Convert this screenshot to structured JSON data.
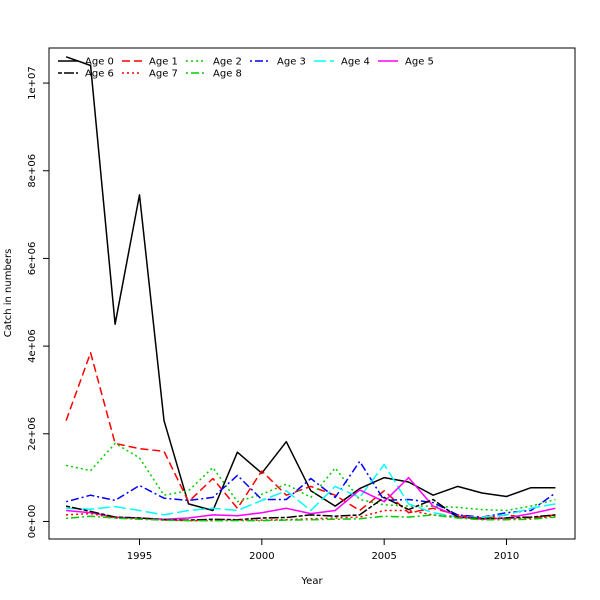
{
  "chart_data": {
    "type": "line",
    "title": "",
    "xlabel": "Year",
    "ylabel": "Catch in numbers",
    "xlim": [
      1991.3,
      2012.8
    ],
    "ylim": [
      -400000,
      10800000
    ],
    "x_ticks": [
      1995,
      2000,
      2005,
      2010
    ],
    "x_tick_labels": [
      "1995",
      "2000",
      "2005",
      "2010"
    ],
    "y_ticks": [
      0,
      2000000,
      4000000,
      6000000,
      8000000,
      10000000
    ],
    "y_tick_labels": [
      "0e+00",
      "2e+06",
      "4e+06",
      "6e+06",
      "8e+06",
      "1e+07"
    ],
    "grid": false,
    "legend": {
      "placement": "top-left",
      "columns": 6
    },
    "x": [
      1992,
      1993,
      1994,
      1995,
      1996,
      1997,
      1998,
      1999,
      2000,
      2001,
      2002,
      2003,
      2004,
      2005,
      2006,
      2007,
      2008,
      2009,
      2010,
      2011,
      2012
    ],
    "series": [
      {
        "name": "Age 0",
        "color": "#000000",
        "dash": "solid",
        "values": [
          10600000,
          10400000,
          4500000,
          7450000,
          2300000,
          400000,
          250000,
          1580000,
          1100000,
          1820000,
          700000,
          350000,
          750000,
          1000000,
          900000,
          600000,
          800000,
          650000,
          570000,
          770000,
          770000
        ]
      },
      {
        "name": "Age 1",
        "color": "#ff0000",
        "dash": "dashed",
        "values": [
          2300000,
          3850000,
          1780000,
          1660000,
          1600000,
          450000,
          980000,
          300000,
          1150000,
          600000,
          800000,
          600000,
          250000,
          700000,
          200000,
          300000,
          150000,
          80000,
          150000,
          80000,
          150000
        ]
      },
      {
        "name": "Age 2",
        "color": "#00cd00",
        "dash": "dotted",
        "values": [
          1280000,
          1160000,
          1780000,
          1450000,
          600000,
          700000,
          1230000,
          450000,
          620000,
          850000,
          550000,
          1220000,
          500000,
          380000,
          350000,
          350000,
          320000,
          270000,
          250000,
          350000,
          500000
        ]
      },
      {
        "name": "Age 3",
        "color": "#0000ff",
        "dash": "dotdash",
        "values": [
          450000,
          600000,
          480000,
          820000,
          530000,
          480000,
          550000,
          1050000,
          500000,
          500000,
          980000,
          550000,
          1370000,
          480000,
          500000,
          430000,
          150000,
          100000,
          200000,
          250000,
          650000
        ]
      },
      {
        "name": "Age 4",
        "color": "#00ffff",
        "dash": "longdash",
        "values": [
          300000,
          280000,
          340000,
          250000,
          150000,
          250000,
          300000,
          250000,
          480000,
          700000,
          250000,
          800000,
          550000,
          1300000,
          400000,
          200000,
          100000,
          100000,
          150000,
          300000,
          400000
        ]
      },
      {
        "name": "Age 5",
        "color": "#ff00ff",
        "dash": "solid",
        "values": [
          250000,
          200000,
          100000,
          80000,
          50000,
          80000,
          150000,
          130000,
          200000,
          300000,
          180000,
          250000,
          720000,
          450000,
          1000000,
          350000,
          120000,
          50000,
          80000,
          180000,
          300000
        ]
      },
      {
        "name": "Age 6",
        "color": "#000000",
        "dash": "twodash",
        "values": [
          350000,
          230000,
          100000,
          80000,
          40000,
          30000,
          50000,
          40000,
          80000,
          90000,
          150000,
          120000,
          150000,
          550000,
          270000,
          500000,
          100000,
          60000,
          80000,
          100000,
          150000
        ]
      },
      {
        "name": "Age 7",
        "color": "#ff0000",
        "dash": "dotted",
        "values": [
          150000,
          180000,
          80000,
          60000,
          30000,
          20000,
          20000,
          30000,
          30000,
          40000,
          60000,
          80000,
          100000,
          250000,
          250000,
          150000,
          100000,
          80000,
          60000,
          70000,
          120000
        ]
      },
      {
        "name": "Age 8",
        "color": "#00cd00",
        "dash": "dotdash",
        "values": [
          70000,
          120000,
          80000,
          50000,
          30000,
          20000,
          20000,
          20000,
          20000,
          30000,
          40000,
          50000,
          60000,
          120000,
          100000,
          150000,
          80000,
          40000,
          40000,
          50000,
          100000
        ]
      }
    ]
  }
}
